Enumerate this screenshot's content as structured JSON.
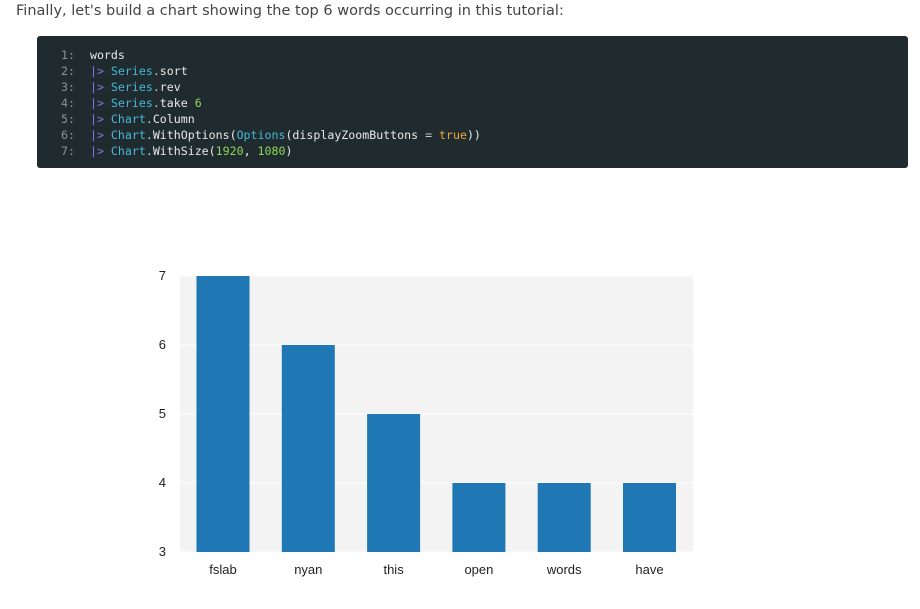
{
  "intro_text": "Finally, let's build a chart showing the top 6 words occurring in this tutorial:",
  "code": {
    "lines": [
      {
        "num": "1:",
        "tokens": [
          {
            "t": "words",
            "c": "fn"
          }
        ]
      },
      {
        "num": "2:",
        "tokens": [
          {
            "t": "|> ",
            "c": "pipe"
          },
          {
            "t": "Series",
            "c": "ns"
          },
          {
            "t": ".",
            "c": "op"
          },
          {
            "t": "sort",
            "c": "fn"
          }
        ]
      },
      {
        "num": "3:",
        "tokens": [
          {
            "t": "|> ",
            "c": "pipe"
          },
          {
            "t": "Series",
            "c": "ns"
          },
          {
            "t": ".",
            "c": "op"
          },
          {
            "t": "rev",
            "c": "fn"
          }
        ]
      },
      {
        "num": "4:",
        "tokens": [
          {
            "t": "|> ",
            "c": "pipe"
          },
          {
            "t": "Series",
            "c": "ns"
          },
          {
            "t": ".",
            "c": "op"
          },
          {
            "t": "take ",
            "c": "fn"
          },
          {
            "t": "6",
            "c": "num"
          }
        ]
      },
      {
        "num": "5:",
        "tokens": [
          {
            "t": "|> ",
            "c": "pipe"
          },
          {
            "t": "Chart",
            "c": "ns"
          },
          {
            "t": ".",
            "c": "op"
          },
          {
            "t": "Column",
            "c": "fn"
          }
        ]
      },
      {
        "num": "6:",
        "tokens": [
          {
            "t": "|> ",
            "c": "pipe"
          },
          {
            "t": "Chart",
            "c": "ns"
          },
          {
            "t": ".",
            "c": "op"
          },
          {
            "t": "WithOptions(",
            "c": "fn"
          },
          {
            "t": "Options",
            "c": "ns"
          },
          {
            "t": "(displayZoomButtons ",
            "c": "fn"
          },
          {
            "t": "=",
            "c": "op"
          },
          {
            "t": " ",
            "c": "fn"
          },
          {
            "t": "true",
            "c": "kw"
          },
          {
            "t": "))",
            "c": "fn"
          }
        ]
      },
      {
        "num": "7:",
        "tokens": [
          {
            "t": "|> ",
            "c": "pipe"
          },
          {
            "t": "Chart",
            "c": "ns"
          },
          {
            "t": ".",
            "c": "op"
          },
          {
            "t": "WithSize(",
            "c": "fn"
          },
          {
            "t": "1920",
            "c": "num"
          },
          {
            "t": ", ",
            "c": "fn"
          },
          {
            "t": "1080",
            "c": "num"
          },
          {
            "t": ")",
            "c": "fn"
          }
        ]
      }
    ]
  },
  "chart_data": {
    "type": "bar",
    "categories": [
      "fslab",
      "nyan",
      "this",
      "open",
      "words",
      "have"
    ],
    "values": [
      7,
      6,
      5,
      4,
      4,
      4
    ],
    "title": "",
    "xlabel": "",
    "ylabel": "",
    "ylim": [
      3,
      7
    ],
    "yticks": [
      "3",
      "4",
      "5",
      "6",
      "7"
    ],
    "grid": true,
    "legend": "none",
    "bar_color": "#1f77b4",
    "plot_bg": "#f3f3f3"
  }
}
